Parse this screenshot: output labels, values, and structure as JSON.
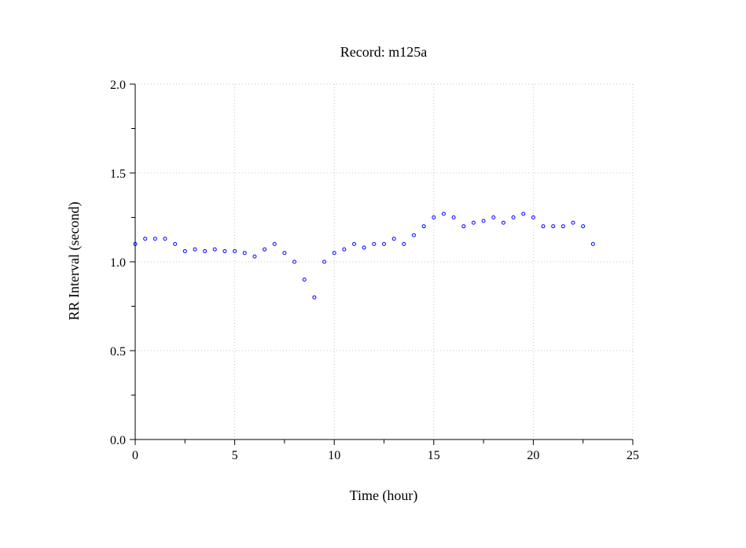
{
  "chart_data": {
    "type": "scatter",
    "title": "Record:  m125a",
    "xlabel": "Time (hour)",
    "ylabel": "RR Interval (second)",
    "xlim": [
      0,
      25
    ],
    "ylim": [
      0,
      2
    ],
    "x_ticks": [
      0,
      5,
      10,
      15,
      20,
      25
    ],
    "x_tick_labels": [
      "0",
      "5",
      "10",
      "15",
      "20",
      "25"
    ],
    "x_minor_ticks": [
      2.5,
      7.5,
      12.5,
      17.5,
      22.5
    ],
    "y_ticks": [
      0,
      0.5,
      1,
      1.5,
      2
    ],
    "y_tick_labels": [
      "0.0",
      "0.5",
      "1.0",
      "1.5",
      "2.0"
    ],
    "y_minor_ticks": [
      0.25,
      0.75,
      1.25,
      1.75
    ],
    "grid": true,
    "marker": "open-circle",
    "series": [
      {
        "color": "#0000ff",
        "x": [
          0.0,
          0.5,
          1.0,
          1.5,
          2.0,
          2.5,
          3.0,
          3.5,
          4.0,
          4.5,
          5.0,
          5.5,
          6.0,
          6.5,
          7.0,
          7.5,
          8.0,
          8.5,
          9.0,
          9.5,
          10.0,
          10.5,
          11.0,
          11.5,
          12.0,
          12.5,
          13.0,
          13.5,
          14.0,
          14.5,
          15.0,
          15.5,
          16.0,
          16.5,
          17.0,
          17.5,
          18.0,
          18.5,
          19.0,
          19.5,
          20.0,
          20.5,
          21.0,
          21.5,
          22.0,
          22.5,
          23.0
        ],
        "y": [
          1.1,
          1.13,
          1.13,
          1.13,
          1.1,
          1.06,
          1.07,
          1.06,
          1.07,
          1.06,
          1.06,
          1.05,
          1.03,
          1.07,
          1.1,
          1.05,
          1.0,
          0.9,
          0.8,
          1.0,
          1.05,
          1.07,
          1.1,
          1.08,
          1.1,
          1.1,
          1.13,
          1.1,
          1.15,
          1.2,
          1.25,
          1.27,
          1.25,
          1.2,
          1.22,
          1.23,
          1.25,
          1.22,
          1.25,
          1.27,
          1.25,
          1.2,
          1.2,
          1.2,
          1.22,
          1.2,
          1.1
        ]
      }
    ]
  }
}
